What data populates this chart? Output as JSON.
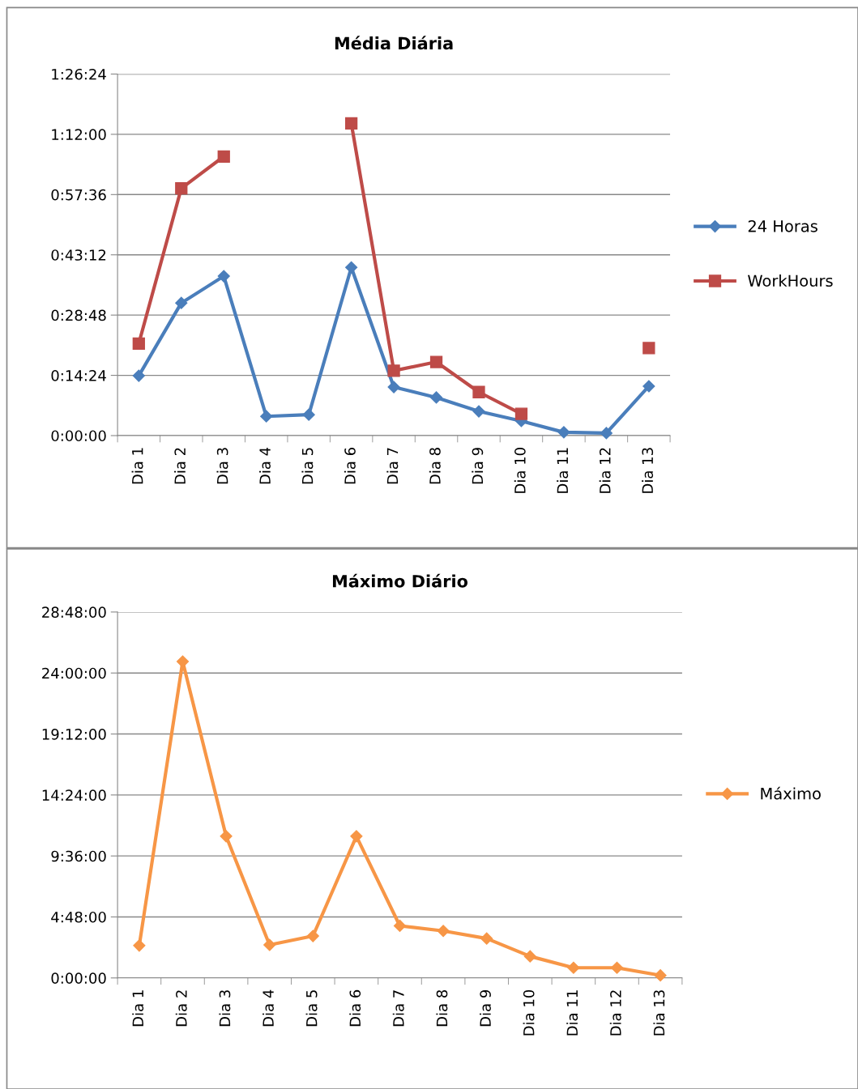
{
  "chart_data": [
    {
      "type": "line",
      "title": "Média Diária",
      "categories": [
        "Dia 1",
        "Dia 2",
        "Dia 3",
        "Dia 4",
        "Dia 5",
        "Dia 6",
        "Dia 7",
        "Dia 8",
        "Dia 9",
        "Dia 10",
        "Dia 11",
        "Dia 12",
        "Dia 13"
      ],
      "series": [
        {
          "name": "24 Horas",
          "color": "#4a7ebb",
          "marker": "diamond",
          "values": [
            14.3,
            31.7,
            38.1,
            4.6,
            5.0,
            40.2,
            11.6,
            9.1,
            5.8,
            3.5,
            0.8,
            0.6,
            11.8
          ]
        },
        {
          "name": "WorkHours",
          "color": "#be4b48",
          "marker": "square",
          "values": [
            22.0,
            59.1,
            66.7,
            null,
            null,
            74.6,
            15.5,
            17.6,
            10.4,
            5.2,
            null,
            null,
            20.9
          ]
        }
      ],
      "ylim": [
        0,
        86.4
      ],
      "yticks": [
        {
          "value": 0,
          "label": "0:00:00"
        },
        {
          "value": 14.4,
          "label": "0:14:24"
        },
        {
          "value": 28.8,
          "label": "0:28:48"
        },
        {
          "value": 43.2,
          "label": "0:43:12"
        },
        {
          "value": 57.6,
          "label": "0:57:36"
        },
        {
          "value": 72,
          "label": "1:12:00"
        },
        {
          "value": 86.4,
          "label": "1:26:24"
        }
      ],
      "grid": "y",
      "legend": "right",
      "line_style": "solid"
    },
    {
      "type": "line",
      "title": "Máximo Diário",
      "categories": [
        "Dia 1",
        "Dia 2",
        "Dia 3",
        "Dia 4",
        "Dia 5",
        "Dia 6",
        "Dia 7",
        "Dia 8",
        "Dia 9",
        "Dia 10",
        "Dia 11",
        "Dia 12",
        "Dia 13"
      ],
      "series": [
        {
          "name": "Máximo",
          "color": "#f79646",
          "marker": "diamond",
          "values": [
            2.55,
            24.9,
            11.15,
            2.6,
            3.3,
            11.15,
            4.1,
            3.7,
            3.1,
            1.7,
            0.8,
            0.8,
            0.2
          ]
        }
      ],
      "ylim": [
        0,
        28.8
      ],
      "yticks": [
        {
          "value": 0,
          "label": "0:00:00"
        },
        {
          "value": 4.8,
          "label": "4:48:00"
        },
        {
          "value": 9.6,
          "label": "9:36:00"
        },
        {
          "value": 14.4,
          "label": "14:24:00"
        },
        {
          "value": 19.2,
          "label": "19:12:00"
        },
        {
          "value": 24,
          "label": "24:00:00"
        },
        {
          "value": 28.8,
          "label": "28:48:00"
        }
      ],
      "grid": "y",
      "legend": "right",
      "line_style": "solid"
    }
  ]
}
